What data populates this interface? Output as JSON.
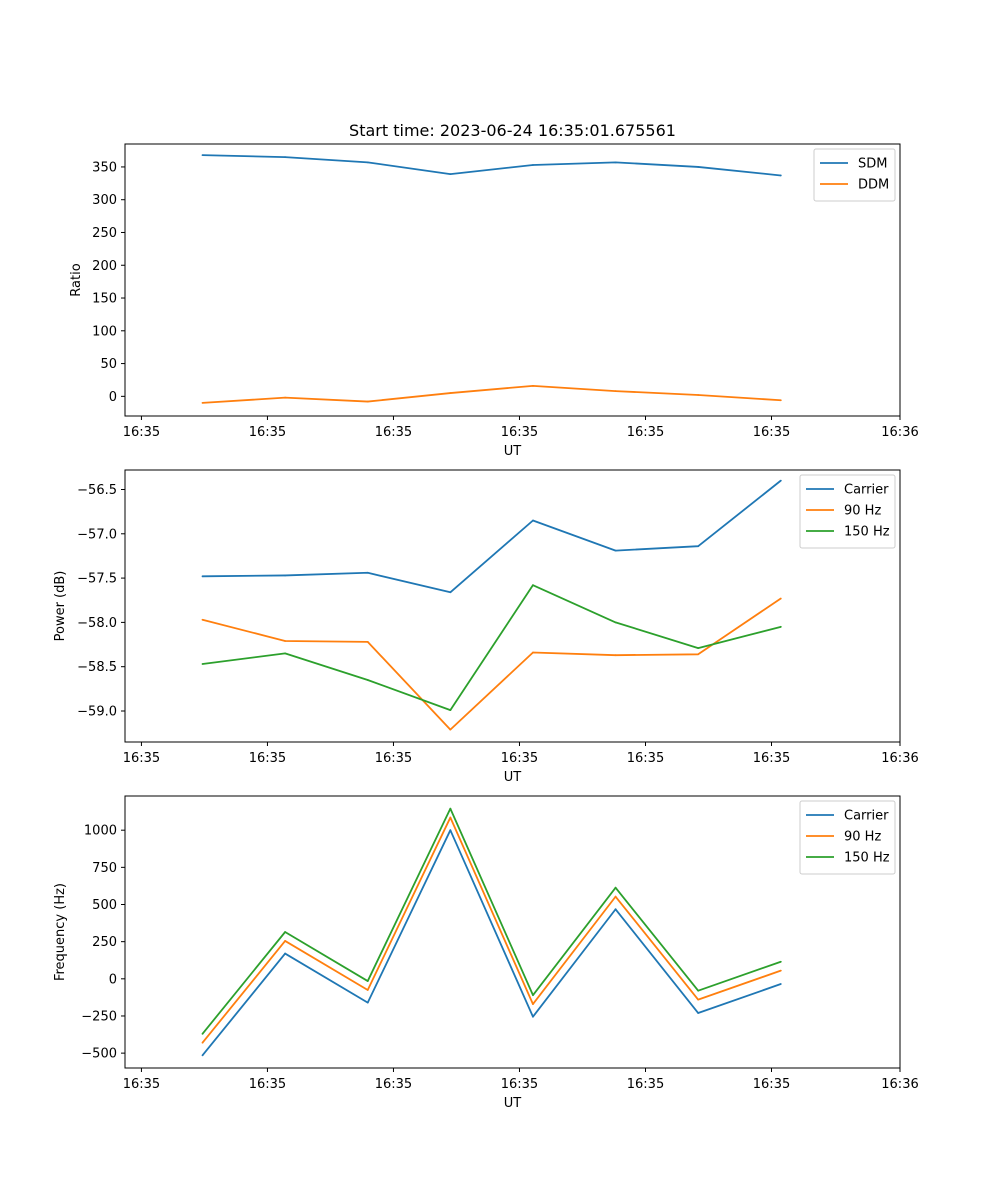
{
  "title": "Start time: 2023-06-24 16:35:01.675561",
  "colors": {
    "series1": "#1f77b4",
    "series2": "#ff7f0e",
    "series3": "#2ca02c"
  },
  "chart_data": [
    {
      "type": "line",
      "xlabel": "UT",
      "ylabel": "Ratio",
      "x_tick_labels": [
        "16:35",
        "16:35",
        "16:35",
        "16:35",
        "16:35",
        "16:35",
        "16:36"
      ],
      "ylim": [
        -30,
        385
      ],
      "y_ticks": [
        0,
        50,
        100,
        150,
        200,
        250,
        300,
        350
      ],
      "legend_position": "top-right",
      "series": [
        {
          "name": "SDM",
          "color": "#1f77b4",
          "values": [
            368,
            365,
            357,
            339,
            353,
            357,
            350,
            337
          ]
        },
        {
          "name": "DDM",
          "color": "#ff7f0e",
          "values": [
            -10,
            -2,
            -8,
            5,
            16,
            8,
            2,
            -6
          ]
        }
      ]
    },
    {
      "type": "line",
      "xlabel": "UT",
      "ylabel": "Power (dB)",
      "x_tick_labels": [
        "16:35",
        "16:35",
        "16:35",
        "16:35",
        "16:35",
        "16:35",
        "16:36"
      ],
      "ylim": [
        -59.35,
        -56.28
      ],
      "y_ticks": [
        -59.0,
        -58.5,
        -58.0,
        -57.5,
        -57.0,
        -56.5
      ],
      "y_tick_labels": [
        "−59.0",
        "−58.5",
        "−58.0",
        "−57.5",
        "−57.0",
        "−56.5"
      ],
      "legend_position": "top-right",
      "series": [
        {
          "name": "Carrier",
          "color": "#1f77b4",
          "values": [
            -57.48,
            -57.47,
            -57.44,
            -57.66,
            -56.85,
            -57.19,
            -57.14,
            -56.4
          ]
        },
        {
          "name": "90 Hz",
          "color": "#ff7f0e",
          "values": [
            -57.97,
            -58.21,
            -58.22,
            -59.21,
            -58.34,
            -58.37,
            -58.36,
            -57.73
          ]
        },
        {
          "name": "150 Hz",
          "color": "#2ca02c",
          "values": [
            -58.47,
            -58.35,
            -58.65,
            -58.99,
            -57.58,
            -58.0,
            -58.29,
            -58.05
          ]
        }
      ]
    },
    {
      "type": "line",
      "xlabel": "UT",
      "ylabel": "Frequency (Hz)",
      "x_tick_labels": [
        "16:35",
        "16:35",
        "16:35",
        "16:35",
        "16:35",
        "16:35",
        "16:36"
      ],
      "ylim": [
        -600,
        1230
      ],
      "y_ticks": [
        -500,
        -250,
        0,
        250,
        500,
        750,
        1000
      ],
      "y_tick_labels": [
        "−500",
        "−250",
        "0",
        "250",
        "500",
        "750",
        "1000"
      ],
      "legend_position": "top-right",
      "series": [
        {
          "name": "Carrier",
          "color": "#1f77b4",
          "values": [
            -515,
            170,
            -160,
            1000,
            -255,
            468,
            -230,
            -35
          ]
        },
        {
          "name": "90 Hz",
          "color": "#ff7f0e",
          "values": [
            -430,
            255,
            -75,
            1085,
            -170,
            553,
            -140,
            55
          ]
        },
        {
          "name": "150 Hz",
          "color": "#2ca02c",
          "values": [
            -370,
            315,
            -15,
            1145,
            -110,
            613,
            -80,
            115
          ]
        }
      ]
    }
  ]
}
